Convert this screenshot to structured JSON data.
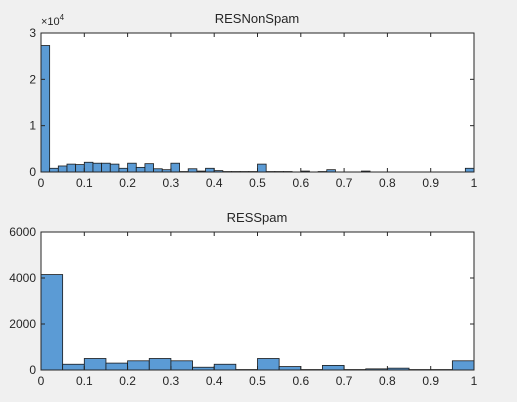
{
  "chart_data": [
    {
      "type": "bar",
      "title": "RESNonSpam",
      "xlabel": "",
      "ylabel": "",
      "xlim": [
        0,
        1
      ],
      "ylim": [
        0,
        30000
      ],
      "xticks": [
        "0",
        "0.1",
        "0.2",
        "0.3",
        "0.4",
        "0.5",
        "0.6",
        "0.7",
        "0.8",
        "0.9",
        "1"
      ],
      "yticks": [
        "0",
        "1",
        "2",
        "3"
      ],
      "yexponent_label": "×10",
      "yexponent_power": "4",
      "bin_width": 0.02,
      "bin_starts": [
        0.0,
        0.02,
        0.04,
        0.06,
        0.08,
        0.1,
        0.12,
        0.14,
        0.16,
        0.18,
        0.2,
        0.22,
        0.24,
        0.26,
        0.28,
        0.3,
        0.32,
        0.34,
        0.36,
        0.38,
        0.4,
        0.42,
        0.44,
        0.46,
        0.48,
        0.5,
        0.52,
        0.54,
        0.56,
        0.58,
        0.6,
        0.62,
        0.64,
        0.66,
        0.68,
        0.7,
        0.72,
        0.74,
        0.76,
        0.78,
        0.8,
        0.82,
        0.84,
        0.86,
        0.88,
        0.9,
        0.92,
        0.94,
        0.96,
        0.98
      ],
      "values": [
        27300,
        800,
        1300,
        1700,
        1600,
        2100,
        1900,
        1900,
        1700,
        800,
        1900,
        1000,
        1800,
        700,
        500,
        1900,
        100,
        700,
        200,
        800,
        300,
        100,
        100,
        100,
        100,
        1700,
        100,
        100,
        100,
        0,
        200,
        0,
        100,
        500,
        0,
        0,
        0,
        200,
        0,
        0,
        0,
        0,
        0,
        0,
        0,
        0,
        0,
        0,
        0,
        800
      ],
      "grid": false
    },
    {
      "type": "bar",
      "title": "RESSpam",
      "xlabel": "",
      "ylabel": "",
      "xlim": [
        0,
        1
      ],
      "ylim": [
        0,
        6000
      ],
      "xticks": [
        "0",
        "0.1",
        "0.2",
        "0.3",
        "0.4",
        "0.5",
        "0.6",
        "0.7",
        "0.8",
        "0.9",
        "1"
      ],
      "yticks": [
        "0",
        "2000",
        "4000",
        "6000"
      ],
      "bin_width": 0.05,
      "bin_starts": [
        0.0,
        0.05,
        0.1,
        0.15,
        0.2,
        0.25,
        0.3,
        0.35,
        0.4,
        0.45,
        0.5,
        0.55,
        0.6,
        0.65,
        0.7,
        0.75,
        0.8,
        0.85,
        0.9,
        0.95
      ],
      "values": [
        4150,
        250,
        500,
        300,
        400,
        500,
        400,
        120,
        250,
        20,
        500,
        150,
        20,
        200,
        20,
        50,
        80,
        20,
        20,
        400
      ],
      "grid": false
    }
  ],
  "colors": {
    "bar_fill": "#5b9bd5",
    "bar_stroke": "#1a1a1a",
    "axes_bg": "#ffffff",
    "figure_bg": "#f0f0f0",
    "text": "#262626"
  }
}
